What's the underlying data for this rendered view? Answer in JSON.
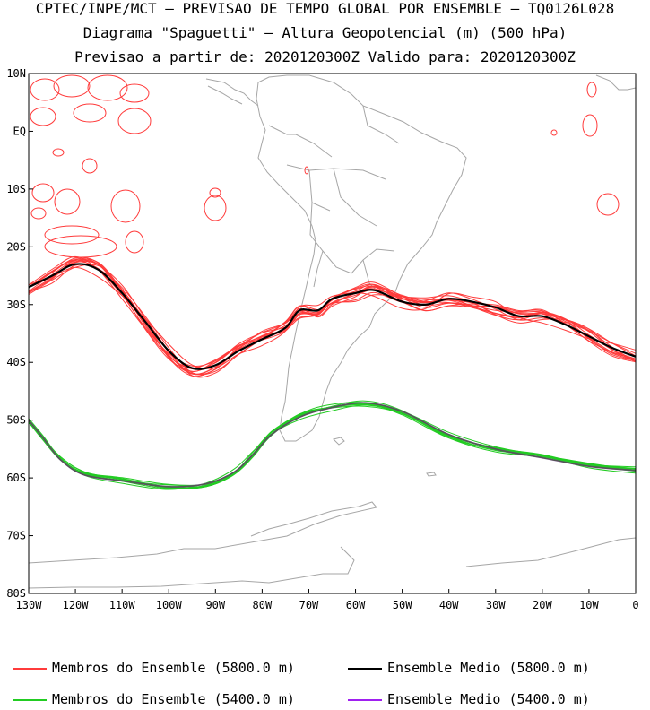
{
  "header": {
    "line1": "CPTEC/INPE/MCT – PREVISAO DE TEMPO GLOBAL POR ENSEMBLE – TQ0126L028",
    "line2": "Diagrama \"Spaguetti\" – Altura Geopotencial (m) (500 hPa)",
    "line3": "Previsao a partir de: 2020120300Z  Valido para: 2020120300Z"
  },
  "map": {
    "lat_labels": [
      "10N",
      "EQ",
      "10S",
      "20S",
      "30S",
      "40S",
      "50S",
      "60S",
      "70S",
      "80S"
    ],
    "lon_labels": [
      "130W",
      "120W",
      "110W",
      "100W",
      "90W",
      "80W",
      "70W",
      "60W",
      "50W",
      "40W",
      "30W",
      "20W",
      "10W",
      "0"
    ],
    "lat_range": [
      -80,
      10
    ],
    "lon_range": [
      -130,
      0
    ]
  },
  "legend": {
    "red_members": "Membros do Ensemble (5800.0 m)",
    "black_mean": "Ensemble Medio (5800.0 m)",
    "green_members": "Membros do Ensemble (5400.0 m)",
    "purple_mean": "Ensemble Medio (5400.0 m)"
  },
  "colors": {
    "members_5800": "#ff3b3b",
    "mean_5800": "#000000",
    "members_5400": "#22cc22",
    "mean_5400": "#a020f0",
    "coast": "#a6a6a6"
  },
  "contours": {
    "mean_5800": [
      [
        -130,
        -27
      ],
      [
        -125,
        -25
      ],
      [
        -120,
        -23
      ],
      [
        -115,
        -24
      ],
      [
        -110,
        -28
      ],
      [
        -105,
        -33
      ],
      [
        -100,
        -38
      ],
      [
        -95,
        -41
      ],
      [
        -90,
        -40.5
      ],
      [
        -85,
        -38
      ],
      [
        -80,
        -36
      ],
      [
        -75,
        -34
      ],
      [
        -72,
        -31
      ],
      [
        -68,
        -31
      ],
      [
        -65,
        -29
      ],
      [
        -60,
        -28
      ],
      [
        -56,
        -27.5
      ],
      [
        -50,
        -29.5
      ],
      [
        -45,
        -30
      ],
      [
        -40,
        -29
      ],
      [
        -35,
        -29.5
      ],
      [
        -30,
        -30.5
      ],
      [
        -25,
        -32
      ],
      [
        -20,
        -32
      ],
      [
        -15,
        -33.5
      ],
      [
        -10,
        -35.5
      ],
      [
        -5,
        -37.5
      ],
      [
        0,
        -39
      ]
    ],
    "mean_5400": [
      [
        -130,
        -50
      ],
      [
        -127,
        -53
      ],
      [
        -123,
        -57
      ],
      [
        -118,
        -59.5
      ],
      [
        -110,
        -60.5
      ],
      [
        -100,
        -61.5
      ],
      [
        -92,
        -61
      ],
      [
        -86,
        -59
      ],
      [
        -82,
        -56
      ],
      [
        -78,
        -52.5
      ],
      [
        -72,
        -49.5
      ],
      [
        -66,
        -48
      ],
      [
        -58,
        -47
      ],
      [
        -50,
        -48.5
      ],
      [
        -40,
        -52.5
      ],
      [
        -30,
        -55
      ],
      [
        -20,
        -56.5
      ],
      [
        -10,
        -58
      ],
      [
        0,
        -58.7
      ]
    ]
  }
}
